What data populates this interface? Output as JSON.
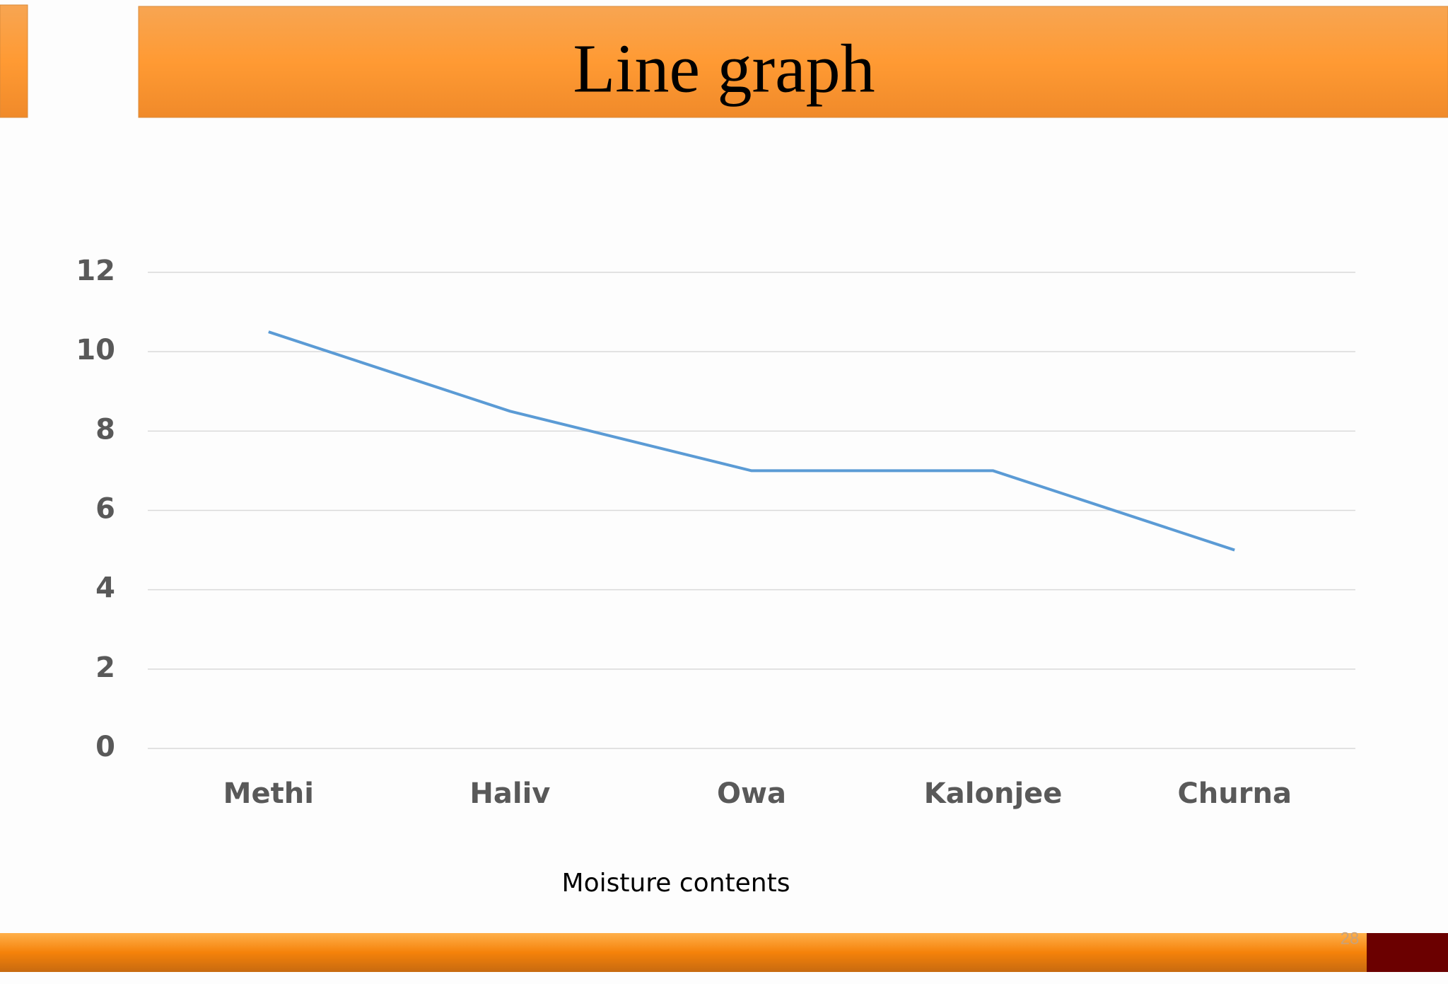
{
  "chart_data": {
    "type": "line",
    "title": "Line graph",
    "categories": [
      "Methi",
      "Haliv",
      "Owa",
      "Kalonjee",
      "Churna"
    ],
    "values": [
      10.5,
      8.5,
      7,
      7,
      5
    ],
    "color": "#5b9bd5",
    "x_label": "Moisture contents",
    "ylim": [
      0,
      12
    ],
    "yticks": [
      0,
      2,
      4,
      6,
      8,
      10,
      12
    ],
    "grid": true
  },
  "page_number": "28"
}
